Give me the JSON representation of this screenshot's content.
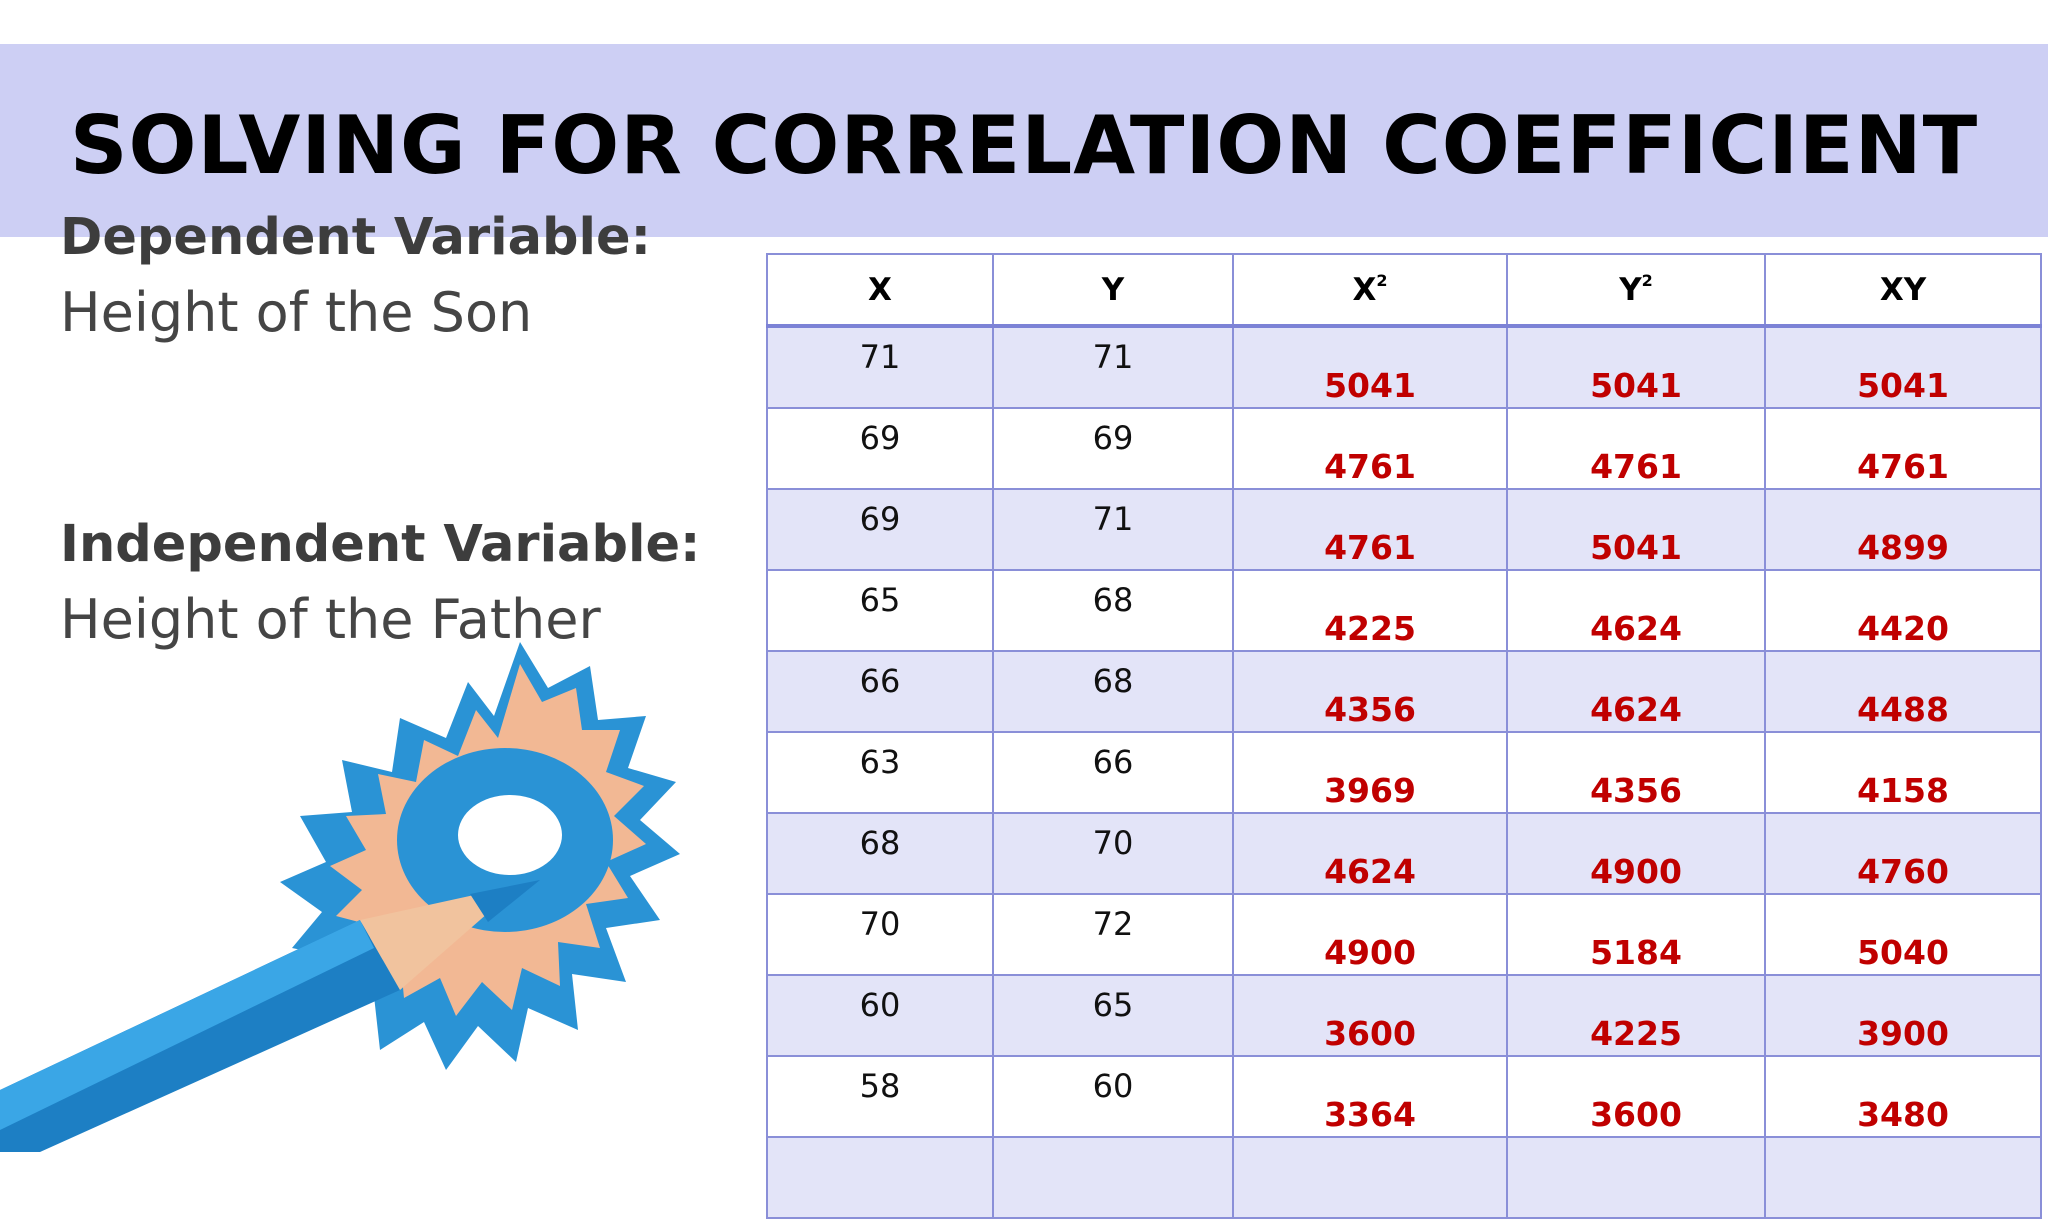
{
  "slide": {
    "title": "SOLVING FOR CORRELATION COEFFICIENT"
  },
  "dependent": {
    "heading": "Dependent Variable:",
    "value": "Height of the Son"
  },
  "independent": {
    "heading": "Independent Variable:",
    "value": "Height of the Father"
  },
  "table": {
    "headers": [
      {
        "base": "X",
        "sup": ""
      },
      {
        "base": "Y",
        "sup": ""
      },
      {
        "base": "X",
        "sup": "2"
      },
      {
        "base": "Y",
        "sup": "2"
      },
      {
        "base": "XY",
        "sup": ""
      }
    ],
    "rows": [
      {
        "x": "71",
        "y": "71",
        "x2": "5041",
        "y2": "5041",
        "xy": "5041"
      },
      {
        "x": "69",
        "y": "69",
        "x2": "4761",
        "y2": "4761",
        "xy": "4761"
      },
      {
        "x": "69",
        "y": "71",
        "x2": "4761",
        "y2": "5041",
        "xy": "4899"
      },
      {
        "x": "65",
        "y": "68",
        "x2": "4225",
        "y2": "4624",
        "xy": "4420"
      },
      {
        "x": "66",
        "y": "68",
        "x2": "4356",
        "y2": "4624",
        "xy": "4488"
      },
      {
        "x": "63",
        "y": "66",
        "x2": "3969",
        "y2": "4356",
        "xy": "4158"
      },
      {
        "x": "68",
        "y": "70",
        "x2": "4624",
        "y2": "4900",
        "xy": "4760"
      },
      {
        "x": "70",
        "y": "72",
        "x2": "4900",
        "y2": "5184",
        "xy": "5040"
      },
      {
        "x": "60",
        "y": "65",
        "x2": "3600",
        "y2": "4225",
        "xy": "3900"
      },
      {
        "x": "58",
        "y": "60",
        "x2": "3364",
        "y2": "3600",
        "xy": "3480"
      },
      {
        "x": "",
        "y": "",
        "x2": "",
        "y2": "",
        "xy": ""
      }
    ]
  },
  "colors": {
    "title_band": "#cdcff4",
    "computed_text": "#c00000",
    "table_border": "#8a8fd8",
    "row_shade": "#e3e4f8"
  },
  "icons": {
    "illustration": "pencil-shavings-icon"
  }
}
